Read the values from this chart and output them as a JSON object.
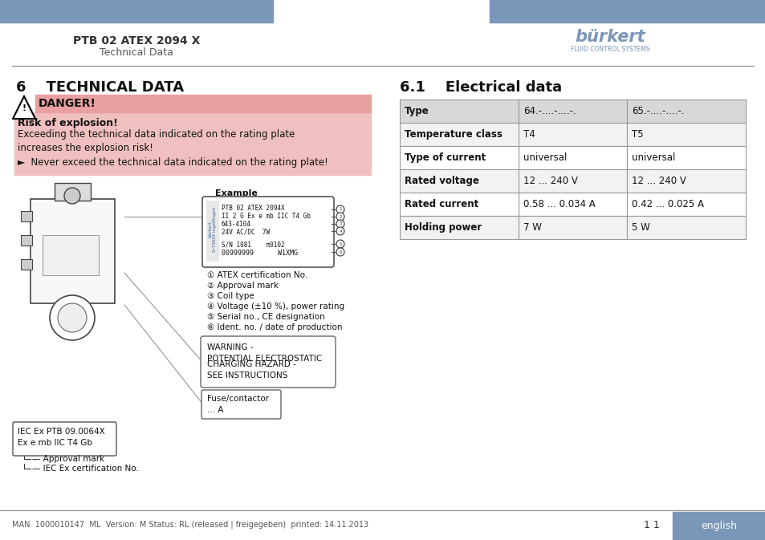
{
  "page_title": "PTB 02 ATEX 2094 X",
  "page_subtitle": "Technical Data",
  "header_bar_color": "#7a96b8",
  "section6_title": "6    TECHNICAL DATA",
  "danger_title": "DANGER!",
  "danger_bg": "#e8a0a0",
  "risk_title": "Risk of explosion!",
  "risk_text1": "Exceeding the technical data indicated on the rating plate\nincreases the explosion risk!",
  "risk_text2": "►  Never exceed the technical data indicated on the rating plate!",
  "risk_bg": "#f0c0c0",
  "section61_title": "6.1    Electrical data",
  "table_headers": [
    "Type",
    "64.-....-....-.",
    "65.-....-....-."
  ],
  "table_rows": [
    [
      "Temperature class",
      "T4",
      "T5"
    ],
    [
      "Type of current",
      "universal",
      "universal"
    ],
    [
      "Rated voltage",
      "12 ... 240 V",
      "12 ... 240 V"
    ],
    [
      "Rated current",
      "0.58 ... 0.034 A",
      "0.42 ... 0.025 A"
    ],
    [
      "Holding power",
      "7 W",
      "5 W"
    ]
  ],
  "table_border": "#999999",
  "example_label": "Example",
  "numbered_items": [
    "① ATEX certification No.",
    "② Approval mark",
    "③ Coil type",
    "④ Voltage (±10 %), power rating",
    "⑤ Serial no., CE designation",
    "⑥ Ident. no. / date of production"
  ],
  "approval_mark_label": "— Approval mark",
  "iec_cert_label": "— IEC Ex certification No.",
  "footer_text": "MAN  1000010147  ML  Version: M Status: RL (released | freigegeben)  printed: 14.11.2013",
  "footer_right": "english",
  "page_number": "1 1",
  "divider_color": "#888888",
  "burkert_color": "#7a96b8"
}
